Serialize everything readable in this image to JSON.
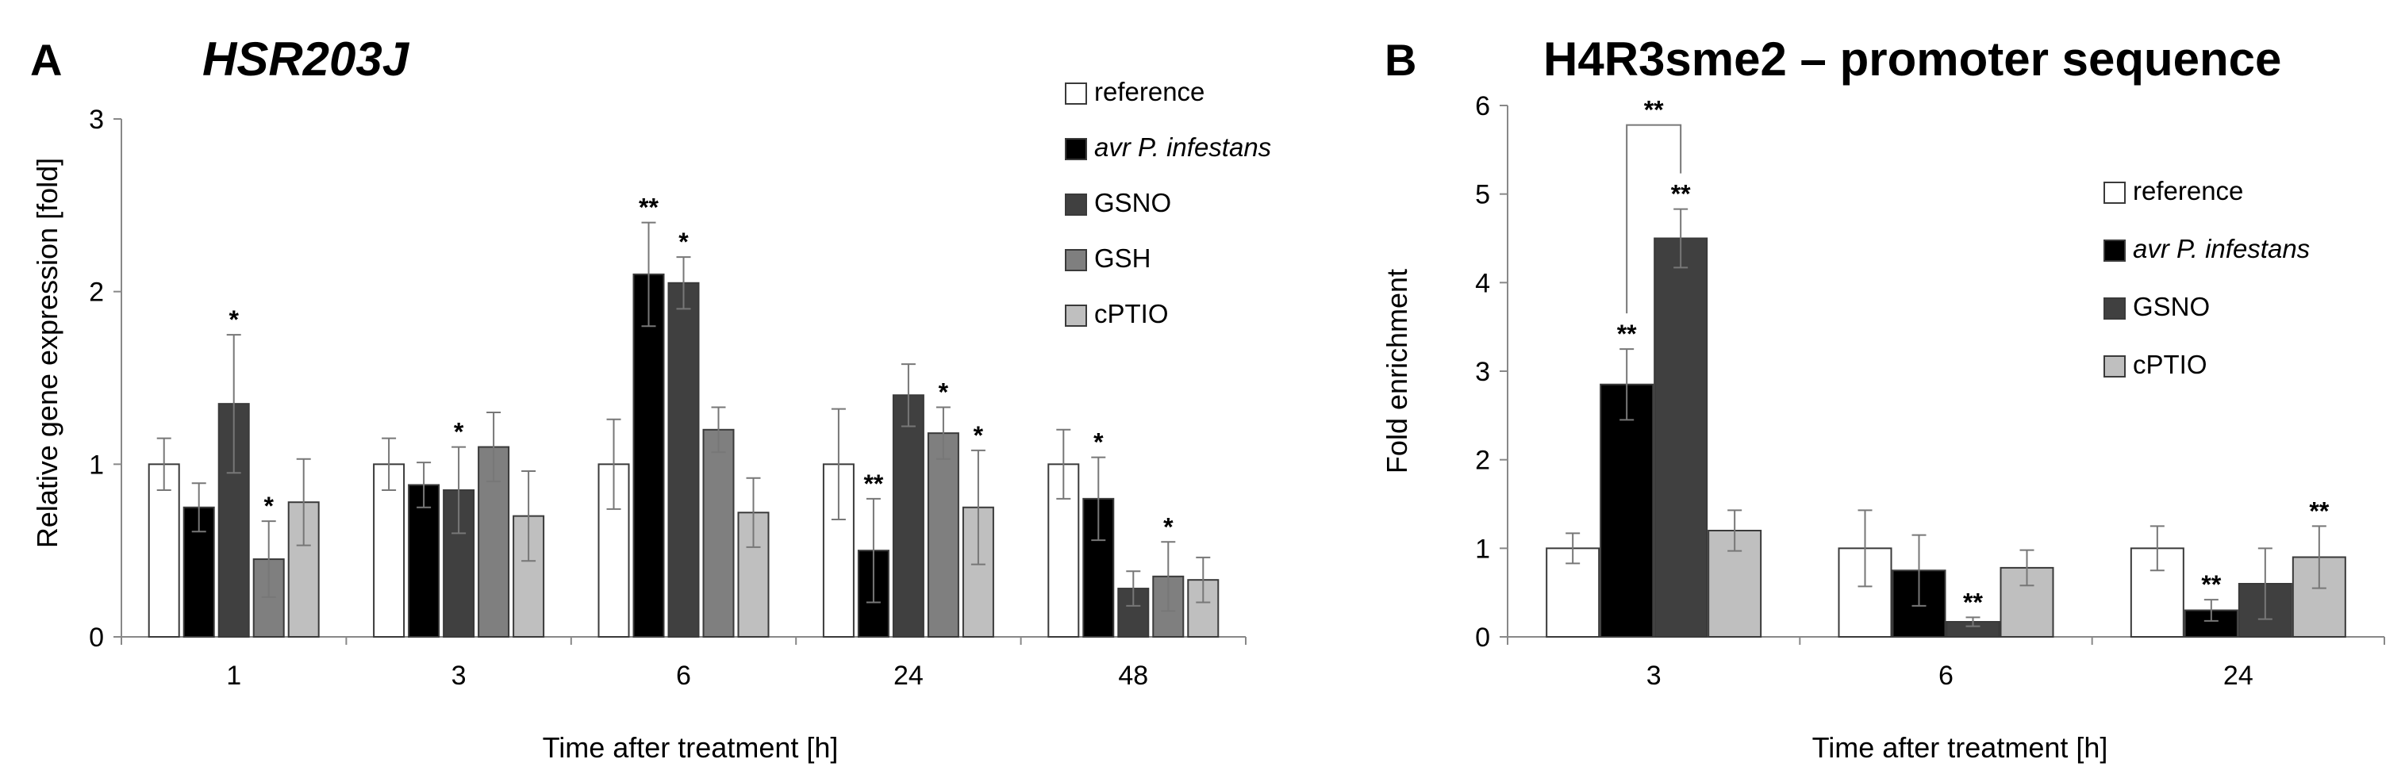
{
  "chart_data": [
    {
      "panel_letter": "A",
      "type": "bar",
      "title": "HSR203J",
      "xlabel": "Time after treatment [h]",
      "ylabel": "Relative gene expression [fold]",
      "ylim": [
        0,
        3
      ],
      "yticks": [
        0,
        1,
        2,
        3
      ],
      "categories": [
        "1",
        "3",
        "6",
        "24",
        "48"
      ],
      "legend_position": "top-right",
      "series": [
        {
          "name": "reference",
          "italic": false,
          "color": "#ffffff",
          "values": [
            1.0,
            1.0,
            1.0,
            1.0,
            1.0
          ],
          "errors": [
            0.15,
            0.15,
            0.26,
            0.32,
            0.2
          ],
          "sig": [
            "",
            "",
            "",
            "",
            ""
          ]
        },
        {
          "name": "avr P. infestans",
          "italic": true,
          "color": "#000000",
          "values": [
            0.75,
            0.88,
            2.1,
            0.5,
            0.8
          ],
          "errors": [
            0.14,
            0.13,
            0.3,
            0.3,
            0.24
          ],
          "sig": [
            "",
            "",
            "**",
            "**",
            "*"
          ]
        },
        {
          "name": "GSNO",
          "italic": false,
          "color": "#404040",
          "values": [
            1.35,
            0.85,
            2.05,
            1.4,
            0.28
          ],
          "errors": [
            0.4,
            0.25,
            0.15,
            0.18,
            0.1
          ],
          "sig": [
            "*",
            "*",
            "*",
            "",
            ""
          ]
        },
        {
          "name": "GSH",
          "italic": false,
          "color": "#7f7f7f",
          "values": [
            0.45,
            1.1,
            1.2,
            1.18,
            0.35
          ],
          "errors": [
            0.22,
            0.2,
            0.13,
            0.15,
            0.2
          ],
          "sig": [
            "*",
            "",
            "",
            "*",
            "*"
          ]
        },
        {
          "name": "cPTIO",
          "italic": false,
          "color": "#bfbfbf",
          "values": [
            0.78,
            0.7,
            0.72,
            0.75,
            0.33
          ],
          "errors": [
            0.25,
            0.26,
            0.2,
            0.33,
            0.13
          ],
          "sig": [
            "",
            "",
            "",
            "*",
            ""
          ]
        }
      ]
    },
    {
      "panel_letter": "B",
      "type": "bar",
      "title": "H4R3sme2 – promoter sequence",
      "xlabel": "Time after treatment [h]",
      "ylabel": "Fold enrichment",
      "ylim": [
        0,
        6
      ],
      "yticks": [
        0,
        1,
        2,
        3,
        4,
        5,
        6
      ],
      "categories": [
        "3",
        "6",
        "24"
      ],
      "legend_position": "right",
      "bracket_label": "**",
      "series": [
        {
          "name": "reference",
          "italic": false,
          "color": "#ffffff",
          "values": [
            1.0,
            1.0,
            1.0
          ],
          "errors": [
            0.17,
            0.43,
            0.25
          ],
          "sig": [
            "",
            "",
            ""
          ]
        },
        {
          "name": "avr P. infestans",
          "italic": true,
          "color": "#000000",
          "values": [
            2.85,
            0.75,
            0.3
          ],
          "errors": [
            0.4,
            0.4,
            0.12
          ],
          "sig": [
            "**",
            "",
            "**"
          ]
        },
        {
          "name": "GSNO",
          "italic": false,
          "color": "#404040",
          "values": [
            4.5,
            0.17,
            0.6
          ],
          "errors": [
            0.33,
            0.05,
            0.4
          ],
          "sig": [
            "**",
            "**",
            ""
          ]
        },
        {
          "name": "cPTIO",
          "italic": false,
          "color": "#bfbfbf",
          "values": [
            1.2,
            0.78,
            0.9
          ],
          "errors": [
            0.23,
            0.2,
            0.35
          ],
          "sig": [
            "",
            "",
            "**"
          ]
        }
      ]
    }
  ]
}
